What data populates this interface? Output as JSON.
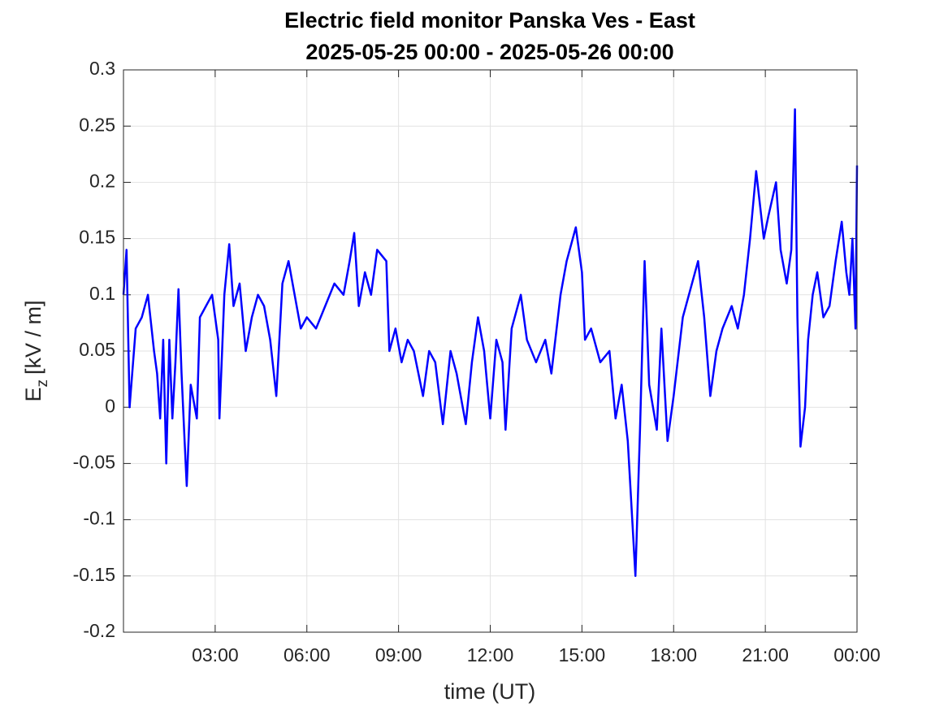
{
  "chart_data": {
    "type": "line",
    "title": [
      "Electric field monitor Panska Ves - East",
      "2025-05-25 00:00 - 2025-05-26 00:00"
    ],
    "xlabel": "time (UT)",
    "ylabel": {
      "base": "E",
      "sub": "z",
      "unit": "[kV / m]"
    },
    "xlim": [
      0,
      24
    ],
    "ylim": [
      -0.2,
      0.3
    ],
    "xticks": [
      {
        "value": 3,
        "label": "03:00"
      },
      {
        "value": 6,
        "label": "06:00"
      },
      {
        "value": 9,
        "label": "09:00"
      },
      {
        "value": 12,
        "label": "12:00"
      },
      {
        "value": 15,
        "label": "15:00"
      },
      {
        "value": 18,
        "label": "18:00"
      },
      {
        "value": 21,
        "label": "21:00"
      },
      {
        "value": 24,
        "label": "00:00"
      }
    ],
    "yticks": [
      -0.2,
      -0.15,
      -0.1,
      -0.05,
      0,
      0.05,
      0.1,
      0.15,
      0.2,
      0.25,
      0.3
    ],
    "grid": true,
    "series": [
      {
        "name": "Ez",
        "color": "#0000ff",
        "x": [
          0.0,
          0.1,
          0.2,
          0.4,
          0.6,
          0.8,
          1.0,
          1.1,
          1.2,
          1.3,
          1.4,
          1.5,
          1.6,
          1.7,
          1.8,
          1.9,
          2.0,
          2.07,
          2.2,
          2.4,
          2.5,
          2.7,
          2.9,
          3.1,
          3.14,
          3.3,
          3.46,
          3.6,
          3.8,
          4.0,
          4.2,
          4.4,
          4.6,
          4.8,
          5.0,
          5.2,
          5.4,
          5.6,
          5.8,
          6.0,
          6.3,
          6.6,
          6.9,
          7.2,
          7.4,
          7.55,
          7.7,
          7.9,
          8.1,
          8.3,
          8.6,
          8.7,
          8.9,
          9.1,
          9.3,
          9.5,
          9.8,
          10.0,
          10.2,
          10.45,
          10.7,
          10.9,
          11.2,
          11.4,
          11.6,
          11.8,
          12.0,
          12.2,
          12.4,
          12.5,
          12.7,
          13.0,
          13.2,
          13.5,
          13.8,
          14.0,
          14.3,
          14.5,
          14.8,
          15.0,
          15.1,
          15.3,
          15.6,
          15.9,
          16.1,
          16.3,
          16.5,
          16.75,
          16.9,
          17.05,
          17.2,
          17.45,
          17.6,
          17.8,
          18.0,
          18.3,
          18.5,
          18.8,
          19.0,
          19.2,
          19.4,
          19.6,
          19.9,
          20.1,
          20.3,
          20.5,
          20.7,
          20.95,
          21.1,
          21.35,
          21.5,
          21.7,
          21.85,
          21.97,
          22.05,
          22.15,
          22.3,
          22.4,
          22.55,
          22.7,
          22.9,
          23.1,
          23.3,
          23.5,
          23.65,
          23.75,
          23.85,
          23.95,
          24.0
        ],
        "values": [
          0.1,
          0.14,
          0.0,
          0.07,
          0.08,
          0.1,
          0.05,
          0.03,
          -0.01,
          0.06,
          -0.05,
          0.06,
          -0.01,
          0.04,
          0.105,
          0.03,
          -0.03,
          -0.07,
          0.02,
          -0.01,
          0.08,
          0.09,
          0.1,
          0.06,
          -0.01,
          0.1,
          0.145,
          0.09,
          0.11,
          0.05,
          0.08,
          0.1,
          0.09,
          0.06,
          0.01,
          0.11,
          0.13,
          0.1,
          0.07,
          0.08,
          0.07,
          0.09,
          0.11,
          0.1,
          0.13,
          0.155,
          0.09,
          0.12,
          0.1,
          0.14,
          0.13,
          0.05,
          0.07,
          0.04,
          0.06,
          0.05,
          0.01,
          0.05,
          0.04,
          -0.015,
          0.05,
          0.03,
          -0.015,
          0.04,
          0.08,
          0.05,
          -0.01,
          0.06,
          0.04,
          -0.02,
          0.07,
          0.1,
          0.06,
          0.04,
          0.06,
          0.03,
          0.1,
          0.13,
          0.16,
          0.12,
          0.06,
          0.07,
          0.04,
          0.05,
          -0.01,
          0.02,
          -0.03,
          -0.15,
          -0.02,
          0.13,
          0.02,
          -0.02,
          0.07,
          -0.03,
          0.01,
          0.08,
          0.1,
          0.13,
          0.08,
          0.01,
          0.05,
          0.07,
          0.09,
          0.07,
          0.1,
          0.15,
          0.21,
          0.15,
          0.17,
          0.2,
          0.14,
          0.11,
          0.14,
          0.265,
          0.08,
          -0.035,
          0.0,
          0.06,
          0.1,
          0.12,
          0.08,
          0.09,
          0.13,
          0.165,
          0.12,
          0.1,
          0.15,
          0.07,
          0.215
        ]
      }
    ]
  }
}
